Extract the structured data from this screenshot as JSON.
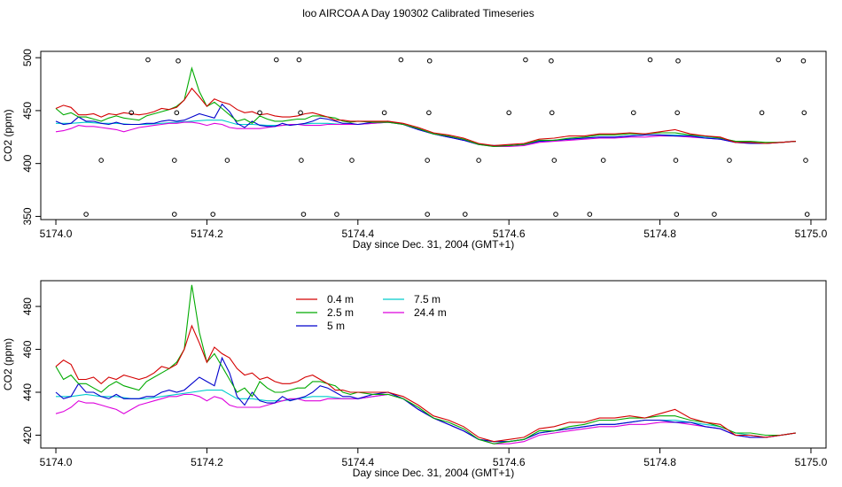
{
  "title": "loo AIRCOA A  Day 190302  Calibrated Timeseries",
  "colors": {
    "0.4 m": "#d40000",
    "2.5 m": "#00aa00",
    "5 m": "#0000cc",
    "7.5 m": "#00cccc",
    "24.4 m": "#dd00dd"
  },
  "chart_data": [
    {
      "type": "scatter+line",
      "xlabel": "Day since Dec. 31, 2004 (GMT+1)",
      "ylabel": "CO2 (ppm)",
      "xlim": [
        5173.98,
        5175.02
      ],
      "ylim": [
        347,
        506
      ],
      "xticks": [
        5174.0,
        5174.2,
        5174.4,
        5174.6,
        5174.8,
        5175.0
      ],
      "xtick_labels": [
        "5174.0",
        "5174.2",
        "5174.4",
        "5174.6",
        "5174.8",
        "5175.0"
      ],
      "yticks": [
        350,
        400,
        450,
        500
      ],
      "ytick_labels": [
        "350",
        "400",
        "450",
        "500"
      ],
      "legend": "none",
      "grid": false,
      "points": [
        {
          "x": 5174.04,
          "y": 352
        },
        {
          "x": 5174.06,
          "y": 403
        },
        {
          "x": 5174.1,
          "y": 448
        },
        {
          "x": 5174.122,
          "y": 498
        },
        {
          "x": 5174.157,
          "y": 352
        },
        {
          "x": 5174.157,
          "y": 403
        },
        {
          "x": 5174.16,
          "y": 448
        },
        {
          "x": 5174.162,
          "y": 497
        },
        {
          "x": 5174.208,
          "y": 352
        },
        {
          "x": 5174.227,
          "y": 403
        },
        {
          "x": 5174.27,
          "y": 448
        },
        {
          "x": 5174.292,
          "y": 498
        },
        {
          "x": 5174.322,
          "y": 498
        },
        {
          "x": 5174.324,
          "y": 448
        },
        {
          "x": 5174.325,
          "y": 403
        },
        {
          "x": 5174.328,
          "y": 352
        },
        {
          "x": 5174.372,
          "y": 352
        },
        {
          "x": 5174.392,
          "y": 403
        },
        {
          "x": 5174.435,
          "y": 448
        },
        {
          "x": 5174.457,
          "y": 498
        },
        {
          "x": 5174.492,
          "y": 352
        },
        {
          "x": 5174.492,
          "y": 403
        },
        {
          "x": 5174.494,
          "y": 448
        },
        {
          "x": 5174.495,
          "y": 497
        },
        {
          "x": 5174.542,
          "y": 352
        },
        {
          "x": 5174.56,
          "y": 403
        },
        {
          "x": 5174.6,
          "y": 448
        },
        {
          "x": 5174.622,
          "y": 498
        },
        {
          "x": 5174.656,
          "y": 497
        },
        {
          "x": 5174.657,
          "y": 448
        },
        {
          "x": 5174.66,
          "y": 403
        },
        {
          "x": 5174.662,
          "y": 352
        },
        {
          "x": 5174.707,
          "y": 352
        },
        {
          "x": 5174.725,
          "y": 403
        },
        {
          "x": 5174.765,
          "y": 448
        },
        {
          "x": 5174.787,
          "y": 498
        },
        {
          "x": 5174.821,
          "y": 403
        },
        {
          "x": 5174.822,
          "y": 352
        },
        {
          "x": 5174.823,
          "y": 448
        },
        {
          "x": 5174.824,
          "y": 497
        },
        {
          "x": 5174.872,
          "y": 352
        },
        {
          "x": 5174.892,
          "y": 403
        },
        {
          "x": 5174.935,
          "y": 448
        },
        {
          "x": 5174.957,
          "y": 498
        },
        {
          "x": 5174.99,
          "y": 497
        },
        {
          "x": 5174.991,
          "y": 448
        },
        {
          "x": 5174.993,
          "y": 403
        },
        {
          "x": 5174.995,
          "y": 352
        }
      ],
      "series": [
        {
          "name": "0.4 m",
          "x": [
            5174.0,
            5174.01,
            5174.02,
            5174.03,
            5174.04,
            5174.05,
            5174.06,
            5174.07,
            5174.08,
            5174.09,
            5174.1,
            5174.11,
            5174.12,
            5174.13,
            5174.14,
            5174.15,
            5174.16,
            5174.17,
            5174.18,
            5174.19,
            5174.2,
            5174.21,
            5174.22,
            5174.23,
            5174.24,
            5174.25,
            5174.26,
            5174.27,
            5174.28,
            5174.29,
            5174.3,
            5174.31,
            5174.32,
            5174.33,
            5174.34,
            5174.35,
            5174.36,
            5174.37,
            5174.38,
            5174.39,
            5174.4,
            5174.42,
            5174.44,
            5174.46,
            5174.48,
            5174.5,
            5174.52,
            5174.54,
            5174.56,
            5174.58,
            5174.6,
            5174.62,
            5174.64,
            5174.66,
            5174.68,
            5174.7,
            5174.72,
            5174.74,
            5174.76,
            5174.78,
            5174.8,
            5174.82,
            5174.84,
            5174.86,
            5174.88,
            5174.9,
            5174.92,
            5174.94,
            5174.96,
            5174.98
          ],
          "y": [
            452,
            455,
            453,
            446,
            446,
            447,
            444,
            447,
            446,
            448,
            447,
            446,
            447,
            449,
            452,
            451,
            453,
            460,
            471,
            463,
            454,
            461,
            458,
            456,
            451,
            448,
            449,
            446,
            447,
            445,
            444,
            444,
            445,
            447,
            448,
            446,
            444,
            441,
            441,
            440,
            440,
            440,
            440,
            438,
            434,
            429,
            427,
            424,
            419,
            417,
            418,
            419,
            423,
            424,
            426,
            426,
            428,
            428,
            429,
            428,
            430,
            432,
            428,
            426,
            425,
            420,
            420,
            419,
            420,
            421
          ]
        },
        {
          "name": "2.5 m",
          "x": [
            5174.0,
            5174.01,
            5174.02,
            5174.03,
            5174.04,
            5174.05,
            5174.06,
            5174.07,
            5174.08,
            5174.09,
            5174.1,
            5174.11,
            5174.12,
            5174.13,
            5174.14,
            5174.15,
            5174.16,
            5174.17,
            5174.18,
            5174.19,
            5174.2,
            5174.21,
            5174.22,
            5174.23,
            5174.24,
            5174.25,
            5174.26,
            5174.27,
            5174.28,
            5174.29,
            5174.3,
            5174.31,
            5174.32,
            5174.33,
            5174.34,
            5174.35,
            5174.36,
            5174.37,
            5174.38,
            5174.39,
            5174.4,
            5174.42,
            5174.44,
            5174.46,
            5174.48,
            5174.5,
            5174.52,
            5174.54,
            5174.56,
            5174.58,
            5174.6,
            5174.62,
            5174.64,
            5174.66,
            5174.68,
            5174.7,
            5174.72,
            5174.74,
            5174.76,
            5174.78,
            5174.8,
            5174.82,
            5174.84,
            5174.86,
            5174.88,
            5174.9,
            5174.92,
            5174.94,
            5174.96,
            5174.98
          ],
          "y": [
            452,
            446,
            448,
            444,
            444,
            442,
            440,
            443,
            445,
            443,
            442,
            441,
            445,
            447,
            449,
            451,
            454,
            460,
            490,
            468,
            454,
            458,
            452,
            446,
            440,
            442,
            438,
            445,
            442,
            440,
            440,
            441,
            442,
            442,
            445,
            445,
            444,
            443,
            440,
            439,
            440,
            439,
            439,
            437,
            433,
            428,
            426,
            423,
            418,
            416,
            417,
            418,
            422,
            422,
            424,
            425,
            427,
            427,
            428,
            428,
            429,
            429,
            427,
            426,
            424,
            421,
            421,
            420,
            420,
            421
          ]
        },
        {
          "name": "5 m",
          "x": [
            5174.0,
            5174.01,
            5174.02,
            5174.03,
            5174.04,
            5174.05,
            5174.06,
            5174.07,
            5174.08,
            5174.09,
            5174.1,
            5174.11,
            5174.12,
            5174.13,
            5174.14,
            5174.15,
            5174.16,
            5174.17,
            5174.18,
            5174.19,
            5174.2,
            5174.21,
            5174.22,
            5174.23,
            5174.24,
            5174.25,
            5174.26,
            5174.27,
            5174.28,
            5174.29,
            5174.3,
            5174.31,
            5174.32,
            5174.33,
            5174.34,
            5174.35,
            5174.36,
            5174.37,
            5174.38,
            5174.39,
            5174.4,
            5174.42,
            5174.44,
            5174.46,
            5174.48,
            5174.5,
            5174.52,
            5174.54,
            5174.56,
            5174.58,
            5174.6,
            5174.62,
            5174.64,
            5174.66,
            5174.68,
            5174.7,
            5174.72,
            5174.74,
            5174.76,
            5174.78,
            5174.8,
            5174.82,
            5174.84,
            5174.86,
            5174.88,
            5174.9,
            5174.92,
            5174.94,
            5174.96,
            5174.98
          ],
          "y": [
            440,
            437,
            438,
            444,
            440,
            440,
            438,
            437,
            439,
            437,
            437,
            437,
            438,
            438,
            440,
            441,
            440,
            441,
            444,
            447,
            445,
            443,
            456,
            449,
            438,
            434,
            440,
            436,
            435,
            435,
            438,
            436,
            437,
            438,
            440,
            443,
            442,
            440,
            438,
            438,
            437,
            439,
            440,
            437,
            432,
            428,
            425,
            422,
            418,
            417,
            417,
            418,
            421,
            422,
            423,
            424,
            425,
            425,
            426,
            427,
            427,
            426,
            426,
            424,
            423,
            420,
            419,
            419,
            420,
            421
          ]
        },
        {
          "name": "7.5 m",
          "x": [
            5174.0,
            5174.02,
            5174.04,
            5174.06,
            5174.08,
            5174.1,
            5174.12,
            5174.14,
            5174.16,
            5174.18,
            5174.2,
            5174.22,
            5174.24,
            5174.26,
            5174.28,
            5174.3,
            5174.32,
            5174.34,
            5174.36,
            5174.38,
            5174.4,
            5174.42,
            5174.44,
            5174.46,
            5174.48,
            5174.5,
            5174.52,
            5174.54,
            5174.56,
            5174.58,
            5174.6,
            5174.62,
            5174.64,
            5174.66,
            5174.68,
            5174.7,
            5174.72,
            5174.74,
            5174.76,
            5174.78,
            5174.8,
            5174.82,
            5174.84,
            5174.86,
            5174.88,
            5174.9,
            5174.92,
            5174.94,
            5174.96,
            5174.98
          ],
          "y": [
            438,
            438,
            439,
            438,
            438,
            437,
            437,
            438,
            439,
            440,
            441,
            441,
            437,
            437,
            436,
            436,
            437,
            438,
            438,
            437,
            437,
            438,
            439,
            437,
            432,
            428,
            425,
            422,
            418,
            417,
            417,
            418,
            421,
            422,
            423,
            424,
            425,
            425,
            426,
            427,
            427,
            427,
            426,
            425,
            424,
            421,
            420,
            419,
            420,
            421
          ]
        },
        {
          "name": "24.4 m",
          "x": [
            5174.0,
            5174.01,
            5174.02,
            5174.03,
            5174.04,
            5174.05,
            5174.06,
            5174.07,
            5174.08,
            5174.09,
            5174.1,
            5174.11,
            5174.12,
            5174.13,
            5174.14,
            5174.15,
            5174.16,
            5174.17,
            5174.18,
            5174.19,
            5174.2,
            5174.21,
            5174.22,
            5174.23,
            5174.24,
            5174.25,
            5174.26,
            5174.27,
            5174.28,
            5174.29,
            5174.3,
            5174.31,
            5174.32,
            5174.33,
            5174.34,
            5174.35,
            5174.36,
            5174.37,
            5174.38,
            5174.39,
            5174.4,
            5174.42,
            5174.44,
            5174.46,
            5174.48,
            5174.5,
            5174.52,
            5174.54,
            5174.56,
            5174.58,
            5174.6,
            5174.62,
            5174.64,
            5174.66,
            5174.68,
            5174.7,
            5174.72,
            5174.74,
            5174.76,
            5174.78,
            5174.8,
            5174.82,
            5174.84,
            5174.86,
            5174.88,
            5174.9,
            5174.92,
            5174.94,
            5174.96,
            5174.98
          ],
          "y": [
            430,
            431,
            433,
            436,
            435,
            435,
            434,
            433,
            432,
            430,
            432,
            434,
            435,
            436,
            437,
            438,
            438,
            439,
            439,
            438,
            436,
            438,
            437,
            434,
            433,
            433,
            433,
            433,
            434,
            435,
            436,
            437,
            437,
            436,
            436,
            436,
            437,
            437,
            437,
            437,
            437,
            438,
            439,
            437,
            432,
            428,
            425,
            422,
            418,
            416,
            416,
            417,
            420,
            421,
            422,
            423,
            424,
            424,
            425,
            425,
            426,
            426,
            425,
            424,
            423,
            420,
            419,
            419,
            420,
            421
          ]
        }
      ]
    },
    {
      "type": "line",
      "xlabel": "Day since Dec. 31, 2004 (GMT+1)",
      "ylabel": "CO2 (ppm)",
      "xlim": [
        5173.98,
        5175.02
      ],
      "ylim": [
        414,
        492
      ],
      "xticks": [
        5174.0,
        5174.2,
        5174.4,
        5174.6,
        5174.8,
        5175.0
      ],
      "xtick_labels": [
        "5174.0",
        "5174.2",
        "5174.4",
        "5174.6",
        "5174.8",
        "5175.0"
      ],
      "yticks": [
        420,
        440,
        460,
        480
      ],
      "ytick_labels": [
        "420",
        "440",
        "460",
        "480"
      ],
      "legend": "top-left",
      "grid": false,
      "legend_entries": [
        "0.4 m",
        "2.5 m",
        "5 m",
        "7.5 m",
        "24.4 m"
      ],
      "series_ref": "same as first panel"
    }
  ]
}
